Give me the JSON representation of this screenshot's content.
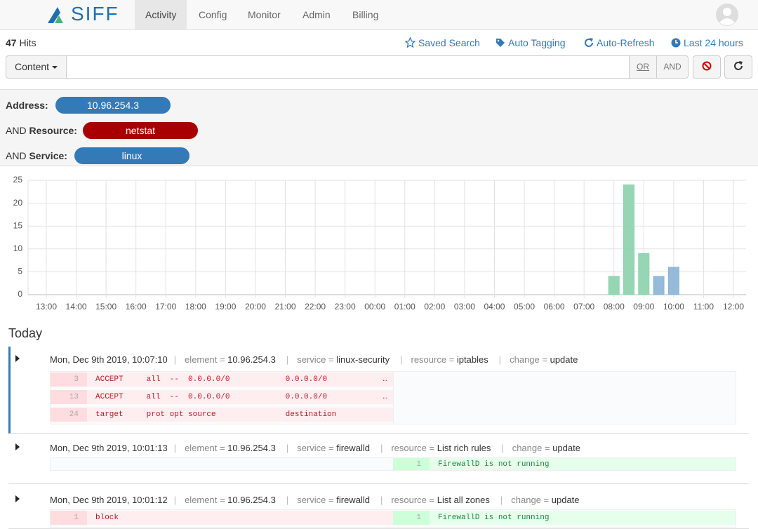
{
  "nav": {
    "logo": "SIFF",
    "tabs": [
      "Activity",
      "Config",
      "Monitor",
      "Admin",
      "Billing"
    ],
    "active": 0
  },
  "toolbar": {
    "hits": 47,
    "hits_label": "Hits",
    "links": [
      "Saved Search",
      "Auto Tagging",
      "Auto-Refresh",
      "Last 24 hours"
    ]
  },
  "search": {
    "dropdown": "Content",
    "or": "OR",
    "and": "AND"
  },
  "filters": [
    {
      "prefix": null,
      "label": "Address:",
      "value": "10.96.254.3",
      "color": "#337ab7"
    },
    {
      "prefix": "AND",
      "label": "Resource:",
      "value": "netstat",
      "color": "#a80000"
    },
    {
      "prefix": "AND",
      "label": "Service:",
      "value": "linux",
      "color": "#337ab7"
    }
  ],
  "chart_data": {
    "type": "bar",
    "xticks": [
      "13:00",
      "14:00",
      "15:00",
      "16:00",
      "17:00",
      "18:00",
      "19:00",
      "20:00",
      "21:00",
      "22:00",
      "23:00",
      "00:00",
      "01:00",
      "02:00",
      "03:00",
      "04:00",
      "05:00",
      "06:00",
      "07:00",
      "08:00",
      "09:00",
      "10:00",
      "11:00",
      "12:00"
    ],
    "ylim": [
      0,
      25
    ],
    "yticks": [
      0,
      5,
      10,
      15,
      20,
      25
    ],
    "grid": true,
    "series": [
      {
        "color": "#8fd8b1",
        "x": [
          "08:00",
          "08:30",
          "09:00"
        ],
        "values": [
          4,
          24,
          9
        ]
      },
      {
        "color": "#8fb8dc",
        "x": [
          "09:30",
          "10:00"
        ],
        "values": [
          4,
          6
        ]
      }
    ]
  },
  "events_heading": "Today",
  "events": [
    {
      "time": "Mon, Dec 9th 2019, 10:07:10",
      "selected": true,
      "fields": [
        {
          "key": "element",
          "value": "10.96.254.3"
        },
        {
          "key": "service",
          "value": "linux-security"
        },
        {
          "key": "resource",
          "value": "iptables"
        },
        {
          "key": "change",
          "value": "update"
        }
      ],
      "removed": [
        {
          "line": 3,
          "text": "ACCEPT     all  --  0.0.0.0/0            0.0.0.0/0            …"
        },
        {
          "line": 13,
          "text": "ACCEPT     all  --  0.0.0.0/0            0.0.0.0/0            …"
        },
        {
          "line": 24,
          "text": "target     prot opt source               destination"
        }
      ],
      "added": []
    },
    {
      "time": "Mon, Dec 9th 2019, 10:01:13",
      "selected": false,
      "fields": [
        {
          "key": "element",
          "value": "10.96.254.3"
        },
        {
          "key": "service",
          "value": "firewalld"
        },
        {
          "key": "resource",
          "value": "List rich rules"
        },
        {
          "key": "change",
          "value": "update"
        }
      ],
      "removed": [],
      "added": [
        {
          "line": 1,
          "text": "FirewallD is not running"
        }
      ]
    },
    {
      "time": "Mon, Dec 9th 2019, 10:01:12",
      "selected": false,
      "fields": [
        {
          "key": "element",
          "value": "10.96.254.3"
        },
        {
          "key": "service",
          "value": "firewalld"
        },
        {
          "key": "resource",
          "value": "List all zones"
        },
        {
          "key": "change",
          "value": "update"
        }
      ],
      "removed": [
        {
          "line": 1,
          "text": "block"
        }
      ],
      "added": [
        {
          "line": 1,
          "text": "FirewallD is not running"
        }
      ]
    }
  ]
}
